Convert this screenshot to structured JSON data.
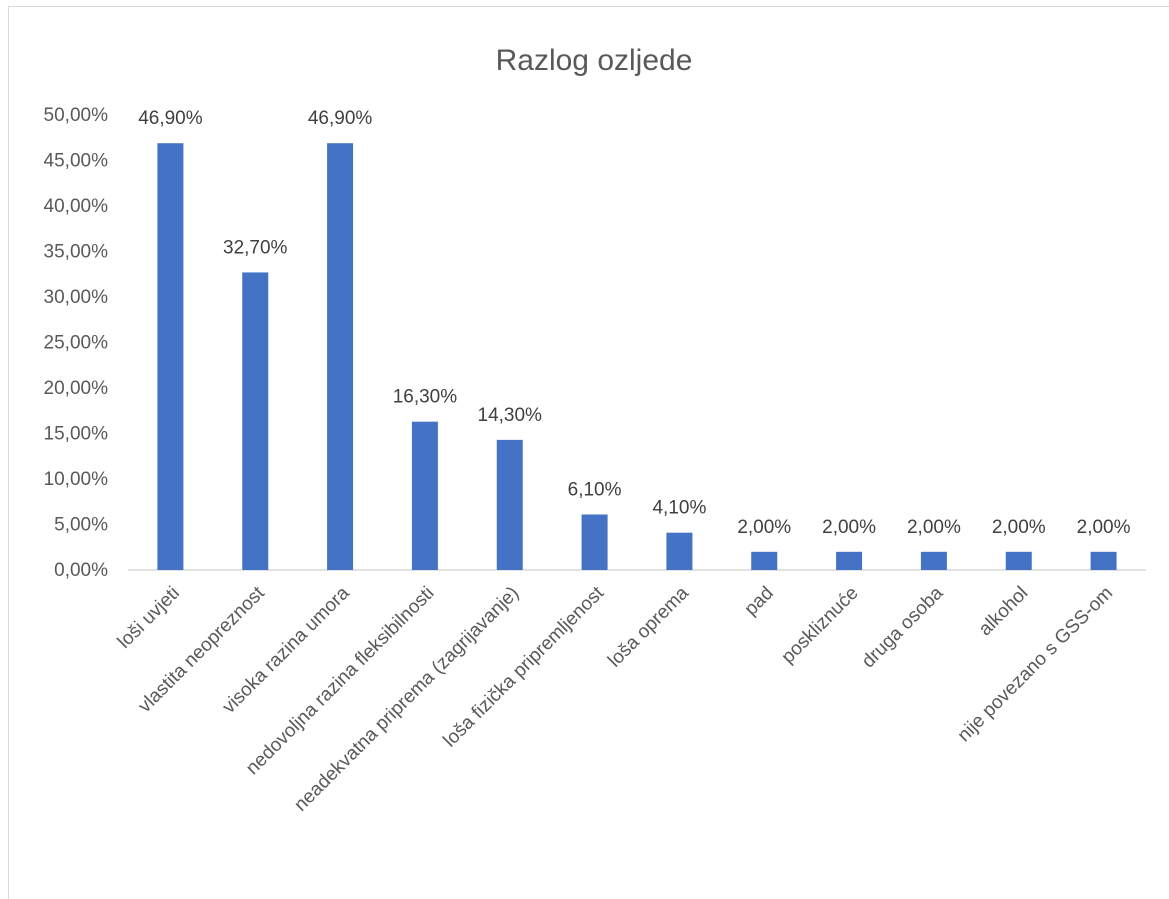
{
  "chart_data": {
    "type": "bar",
    "title": "Razlog ozljede",
    "xlabel": "",
    "ylabel": "",
    "ylim": [
      0,
      50
    ],
    "y_ticks": [
      "0,00%",
      "5,00%",
      "10,00%",
      "15,00%",
      "20,00%",
      "25,00%",
      "30,00%",
      "35,00%",
      "40,00%",
      "45,00%",
      "50,00%"
    ],
    "grid": false,
    "legend": "none",
    "bar_color": "#4472c4",
    "categories": [
      "loši uvjeti",
      "vlastita neopreznost",
      "visoka razina umora",
      "nedovoljna razina fleksibilnosti",
      "neadekvatna priprema (zagrijavanje)",
      "loša fizička pripremljenost",
      "loša oprema",
      "pad",
      "poskliznuće",
      "druga osoba",
      "alkohol",
      "nije povezano s GSS-om"
    ],
    "values": [
      46.9,
      32.7,
      46.9,
      16.3,
      14.3,
      6.1,
      4.1,
      2.0,
      2.0,
      2.0,
      2.0,
      2.0
    ],
    "data_labels": [
      "46,90%",
      "32,70%",
      "46,90%",
      "16,30%",
      "14,30%",
      "6,10%",
      "4,10%",
      "2,00%",
      "2,00%",
      "2,00%",
      "2,00%",
      "2,00%"
    ]
  }
}
